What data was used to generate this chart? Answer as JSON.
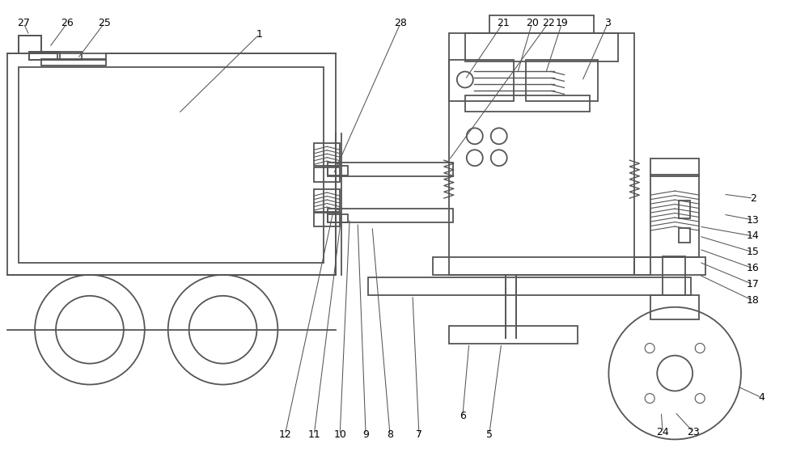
{
  "bg_color": "#ffffff",
  "line_color": "#555555",
  "line_width": 1.3,
  "fig_width": 10.0,
  "fig_height": 5.8
}
